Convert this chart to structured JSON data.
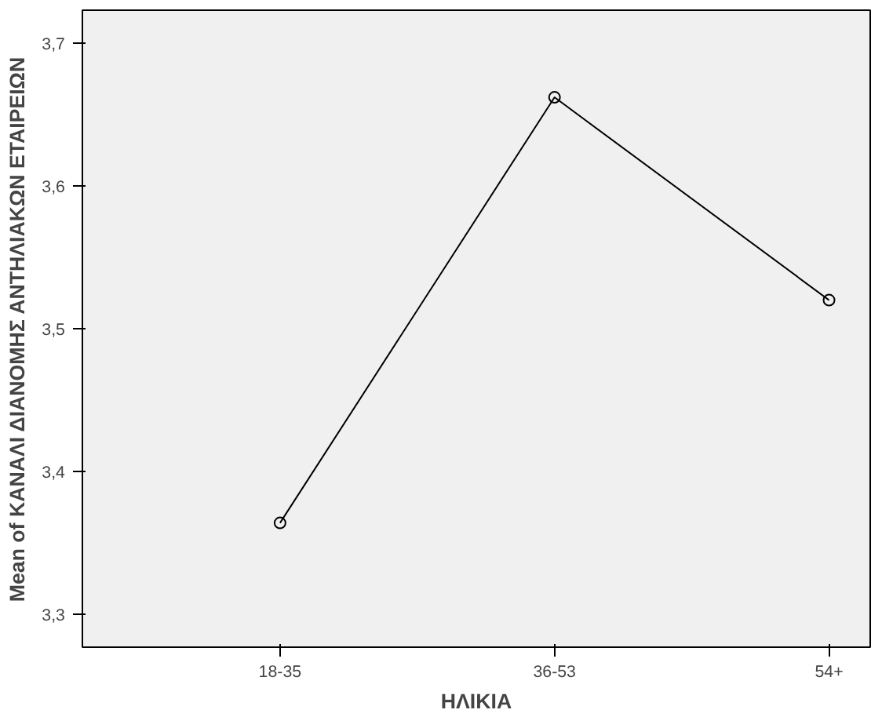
{
  "chart_data": {
    "type": "line",
    "xlabel": "ΗΛΙΚΙΑ",
    "ylabel": "Mean of ΚΑΝΑΛΙ ΔΙΑΝΟΜΗΣ ΑΝΤΗΛΙΑΚΩΝ ΕΤΑΙΡΕΙΩΝ",
    "categories": [
      "18-35",
      "36-53",
      "54+"
    ],
    "series": [
      {
        "color": "#000000",
        "values": [
          3.364,
          3.662,
          3.52
        ]
      }
    ],
    "ylim": [
      3.277,
      3.723
    ],
    "yticks": [
      {
        "value": 3.3,
        "label": "3,3"
      },
      {
        "value": 3.4,
        "label": "3,4"
      },
      {
        "value": 3.5,
        "label": "3,5"
      },
      {
        "value": 3.6,
        "label": "3,6"
      },
      {
        "value": 3.7,
        "label": "3,7"
      }
    ],
    "grid": false,
    "marker": "circle",
    "line_style": "solid"
  }
}
